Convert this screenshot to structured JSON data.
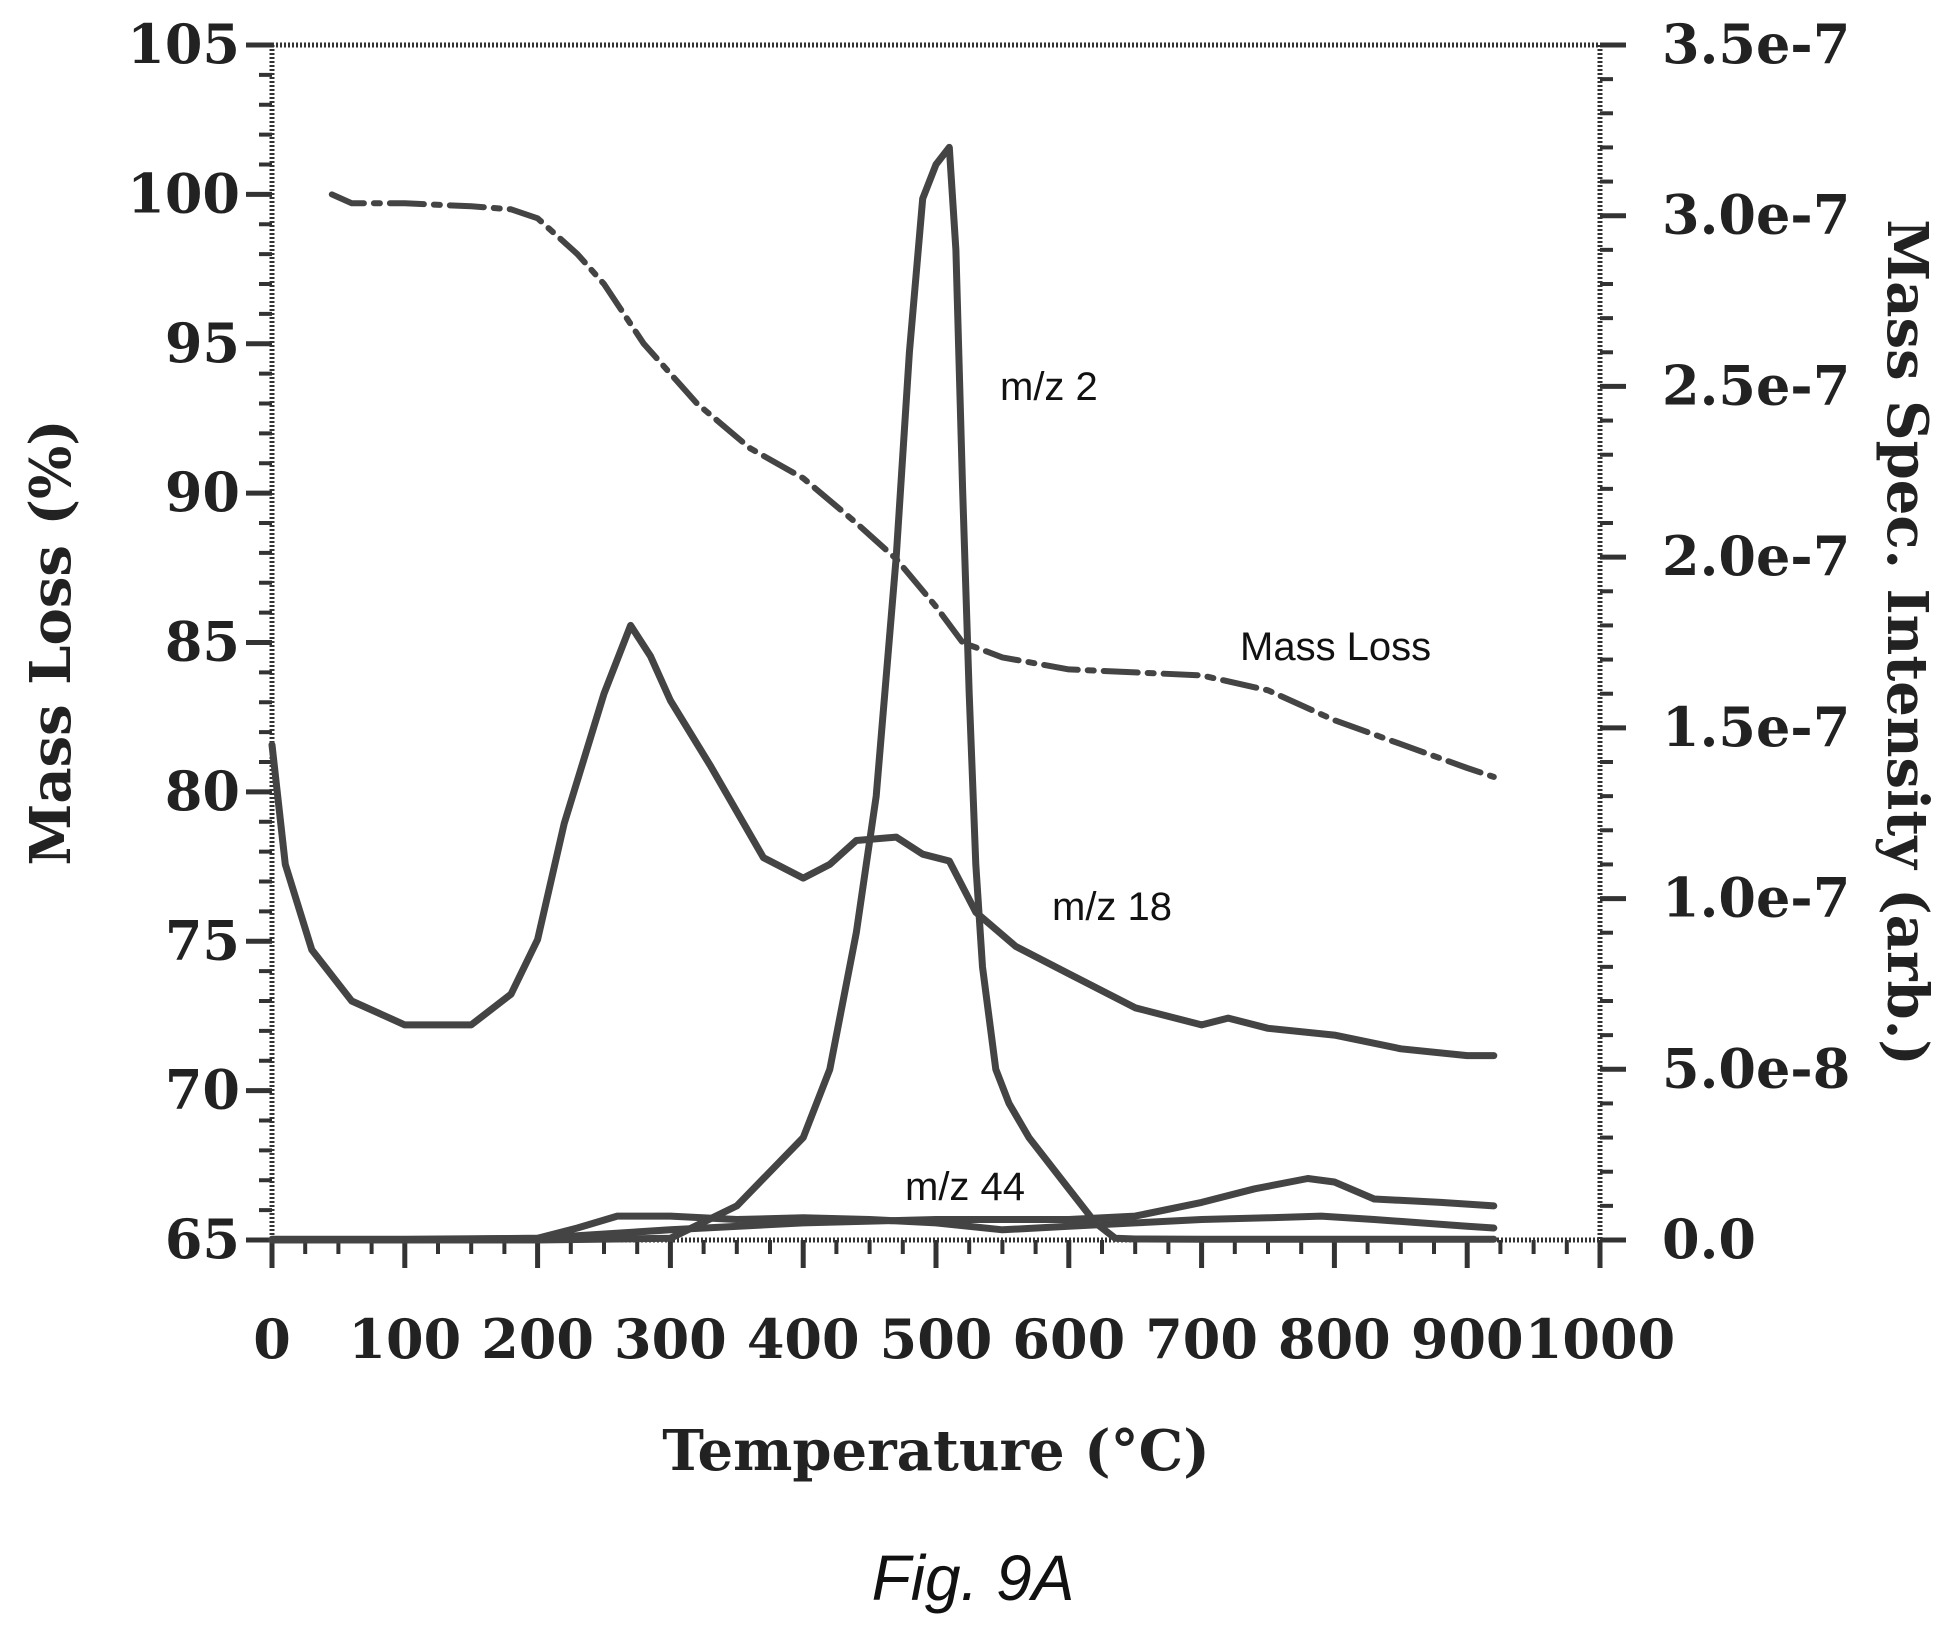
{
  "chart_data": {
    "type": "line",
    "caption": "Fig. 9A",
    "xlabel": "Temperature (°C)",
    "ylabel_left": "Mass Loss (%)",
    "ylabel_right": "Mass Spec. Intensity (arb.)",
    "xlim": [
      0,
      1000
    ],
    "ylim_left": [
      65,
      105
    ],
    "ylim_right": [
      0,
      3.5e-07
    ],
    "x_ticks": [
      "0",
      "100",
      "200",
      "300",
      "400",
      "500",
      "600",
      "700",
      "800",
      "900",
      "1000"
    ],
    "y_left_ticks": [
      "65",
      "70",
      "75",
      "80",
      "85",
      "90",
      "95",
      "100",
      "105"
    ],
    "y_right_ticks": [
      "0.0",
      "5.0e-8",
      "1.0e-7",
      "1.5e-7",
      "2.0e-7",
      "2.5e-7",
      "3.0e-7",
      "3.5e-7"
    ],
    "grid": false,
    "series": [
      {
        "name": "Mass Loss",
        "axis": "left",
        "style": "dash-dot",
        "x": [
          45,
          60,
          100,
          150,
          180,
          200,
          230,
          250,
          280,
          320,
          360,
          400,
          440,
          470,
          500,
          520,
          550,
          600,
          650,
          700,
          750,
          800,
          850,
          900,
          920
        ],
        "y": [
          100.0,
          99.7,
          99.7,
          99.6,
          99.5,
          99.2,
          98.0,
          97.0,
          95.0,
          93.0,
          91.5,
          90.5,
          89.0,
          87.8,
          86.2,
          85.0,
          84.5,
          84.1,
          84.0,
          83.9,
          83.4,
          82.4,
          81.6,
          80.8,
          80.5
        ]
      },
      {
        "name": "m/z 2",
        "axis": "right",
        "label": "m/z 2",
        "x": [
          0,
          100,
          200,
          300,
          350,
          400,
          420,
          440,
          455,
          470,
          480,
          490,
          500,
          510,
          515,
          520,
          525,
          530,
          535,
          545,
          555,
          570,
          600,
          620,
          635,
          650,
          700,
          800,
          900,
          920
        ],
        "y": [
          0,
          0,
          0,
          5e-10,
          1e-08,
          3e-08,
          5e-08,
          9e-08,
          1.3e-07,
          2e-07,
          2.6e-07,
          3.05e-07,
          3.15e-07,
          3.2e-07,
          2.9e-07,
          2.2e-07,
          1.6e-07,
          1.1e-07,
          8e-08,
          5e-08,
          4e-08,
          3e-08,
          1.5e-08,
          5e-09,
          5e-10,
          3e-10,
          2e-10,
          2e-10,
          2e-10,
          2e-10
        ]
      },
      {
        "name": "m/z 18",
        "axis": "right",
        "label": "m/z 18",
        "x": [
          0,
          10,
          30,
          60,
          100,
          150,
          180,
          200,
          220,
          250,
          270,
          285,
          300,
          330,
          370,
          400,
          420,
          440,
          470,
          490,
          510,
          530,
          560,
          600,
          650,
          700,
          720,
          750,
          800,
          850,
          900,
          920
        ],
        "y": [
          1.45e-07,
          1.1e-07,
          8.5e-08,
          7e-08,
          6.3e-08,
          6.3e-08,
          7.2e-08,
          8.8e-08,
          1.22e-07,
          1.6e-07,
          1.8e-07,
          1.71e-07,
          1.58e-07,
          1.39e-07,
          1.12e-07,
          1.06e-07,
          1.1e-07,
          1.17e-07,
          1.18e-07,
          1.13e-07,
          1.11e-07,
          9.6e-08,
          8.6e-08,
          7.8e-08,
          6.8e-08,
          6.3e-08,
          6.5e-08,
          6.2e-08,
          6e-08,
          5.6e-08,
          5.4e-08,
          5.4e-08
        ]
      },
      {
        "name": "m/z 44",
        "axis": "right",
        "label": "m/z 44",
        "x": [
          0,
          100,
          200,
          230,
          260,
          300,
          350,
          400,
          450,
          500,
          550,
          600,
          650,
          700,
          750,
          790,
          830,
          900,
          920
        ],
        "y": [
          2e-10,
          2e-10,
          5e-10,
          3.5e-09,
          7e-09,
          7e-09,
          6e-09,
          6.5e-09,
          6e-09,
          5e-09,
          3e-09,
          4e-09,
          5e-09,
          6e-09,
          6.5e-09,
          7e-09,
          6e-09,
          4e-09,
          3.5e-09
        ]
      },
      {
        "name": "",
        "axis": "right",
        "x": [
          0,
          100,
          200,
          300,
          400,
          500,
          600,
          650,
          700,
          740,
          780,
          800,
          830,
          880,
          920
        ],
        "y": [
          1e-10,
          1e-10,
          5e-10,
          3e-09,
          5e-09,
          6e-09,
          6e-09,
          7e-09,
          1.1e-08,
          1.5e-08,
          1.8e-08,
          1.7e-08,
          1.2e-08,
          1.1e-08,
          1e-08
        ]
      }
    ],
    "annotations": [
      "m/z 2",
      "Mass Loss",
      "m/z 18",
      "m/z 44"
    ]
  }
}
